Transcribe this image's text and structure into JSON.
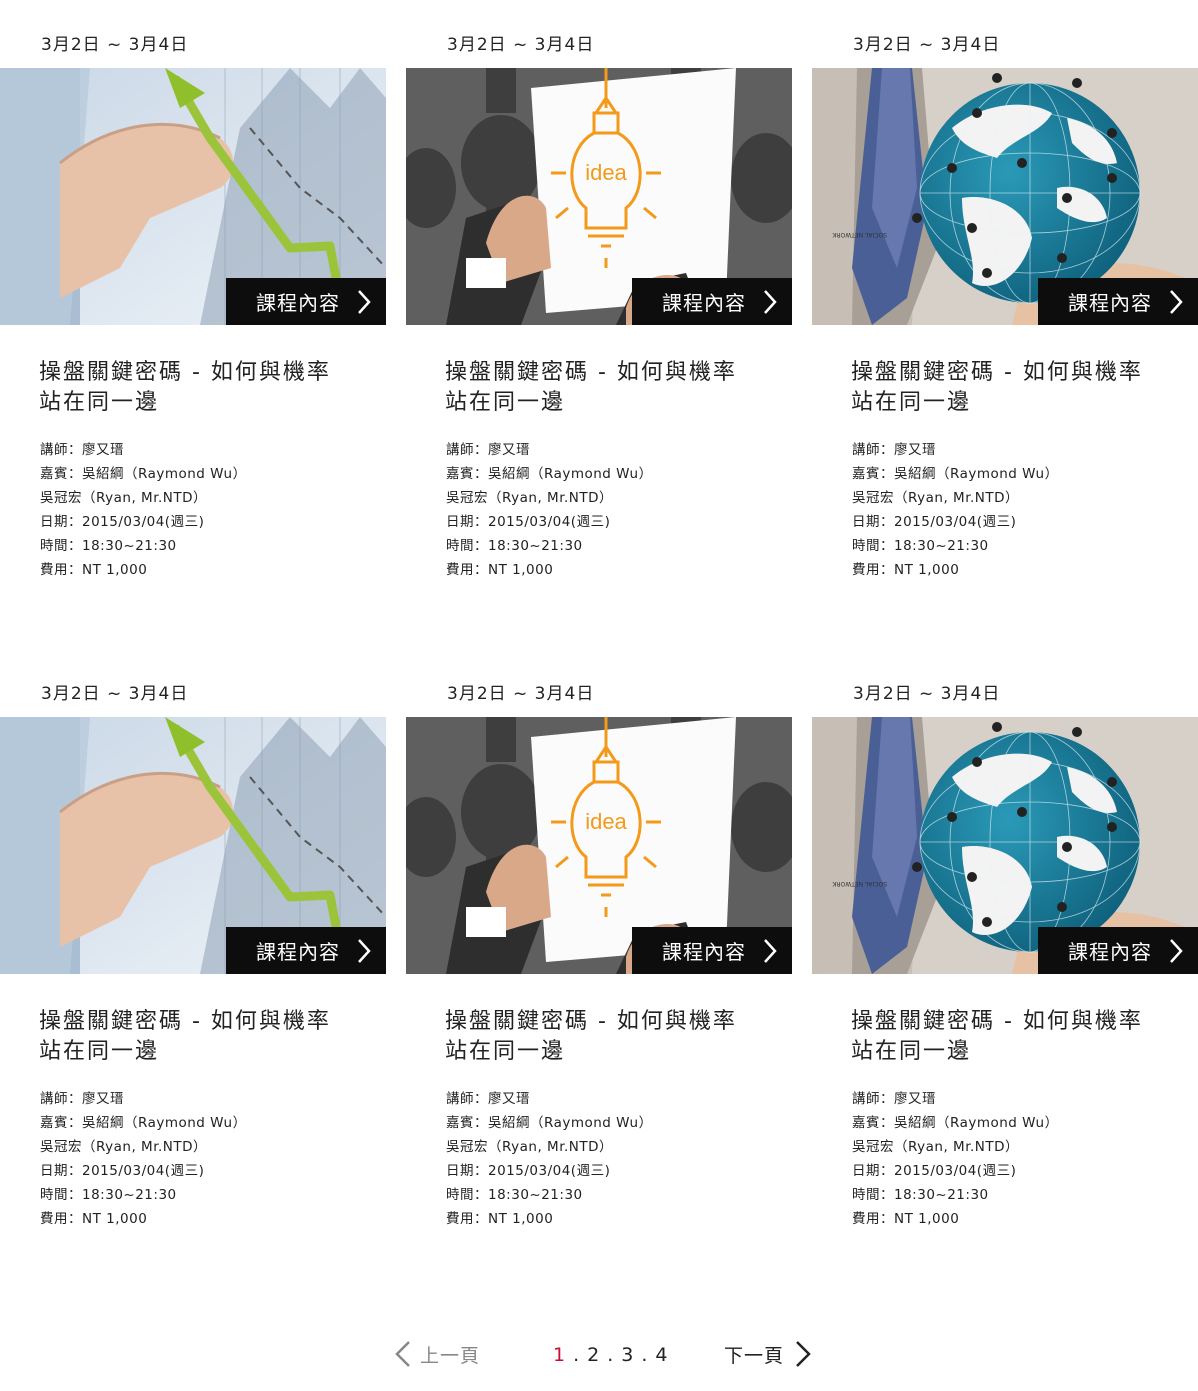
{
  "courses": [
    {
      "date": "3月2日 ~ 3月4日",
      "image": "finance-chart-photo",
      "button": "課程內容",
      "title_line1": "操盤關鍵密碼 - 如何與機率",
      "title_line2": "站在同一邊",
      "lecturer": "講師：廖又瑨",
      "guest": "嘉賓：吳紹綱（Raymond Wu）",
      "guest2": "吳冠宏（Ryan, Mr.NTD）",
      "day": "日期：2015/03/04(週三)",
      "time": "時間：18:30~21:30",
      "fee": "費用：NT 1,000"
    },
    {
      "date": "3月2日 ~ 3月4日",
      "image": "idea-lightbulb-photo",
      "image_text": "idea",
      "button": "課程內容",
      "title_line1": "操盤關鍵密碼 - 如何與機率",
      "title_line2": "站在同一邊",
      "lecturer": "講師：廖又瑨",
      "guest": "嘉賓：吳紹綱（Raymond Wu）",
      "guest2": "吳冠宏（Ryan, Mr.NTD）",
      "day": "日期：2015/03/04(週三)",
      "time": "時間：18:30~21:30",
      "fee": "費用：NT 1,000"
    },
    {
      "date": "3月2日 ~ 3月4日",
      "image": "social-network-globe-photo",
      "button": "課程內容",
      "title_line1": "操盤關鍵密碼 - 如何與機率",
      "title_line2": "站在同一邊",
      "lecturer": "講師：廖又瑨",
      "guest": "嘉賓：吳紹綱（Raymond Wu）",
      "guest2": "吳冠宏（Ryan, Mr.NTD）",
      "day": "日期：2015/03/04(週三)",
      "time": "時間：18:30~21:30",
      "fee": "費用：NT 1,000"
    },
    {
      "date": "3月2日 ~ 3月4日",
      "image": "finance-chart-photo",
      "button": "課程內容",
      "title_line1": "操盤關鍵密碼 - 如何與機率",
      "title_line2": "站在同一邊",
      "lecturer": "講師：廖又瑨",
      "guest": "嘉賓：吳紹綱（Raymond Wu）",
      "guest2": "吳冠宏（Ryan, Mr.NTD）",
      "day": "日期：2015/03/04(週三)",
      "time": "時間：18:30~21:30",
      "fee": "費用：NT 1,000"
    },
    {
      "date": "3月2日 ~ 3月4日",
      "image": "idea-lightbulb-photo",
      "image_text": "idea",
      "button": "課程內容",
      "title_line1": "操盤關鍵密碼 - 如何與機率",
      "title_line2": "站在同一邊",
      "lecturer": "講師：廖又瑨",
      "guest": "嘉賓：吳紹綱（Raymond Wu）",
      "guest2": "吳冠宏（Ryan, Mr.NTD）",
      "day": "日期：2015/03/04(週三)",
      "time": "時間：18:30~21:30",
      "fee": "費用：NT 1,000"
    },
    {
      "date": "3月2日 ~ 3月4日",
      "image": "social-network-globe-photo",
      "button": "課程內容",
      "title_line1": "操盤關鍵密碼 - 如何與機率",
      "title_line2": "站在同一邊",
      "lecturer": "講師：廖又瑨",
      "guest": "嘉賓：吳紹綱（Raymond Wu）",
      "guest2": "吳冠宏（Ryan, Mr.NTD）",
      "day": "日期：2015/03/04(週三)",
      "time": "時間：18:30~21:30",
      "fee": "費用：NT 1,000"
    }
  ],
  "pagination": {
    "prev_label": "上一頁",
    "next_label": "下一頁",
    "pages": [
      "1",
      "2",
      "3",
      "4"
    ],
    "current": "1",
    "active_color": "#c8102e"
  }
}
